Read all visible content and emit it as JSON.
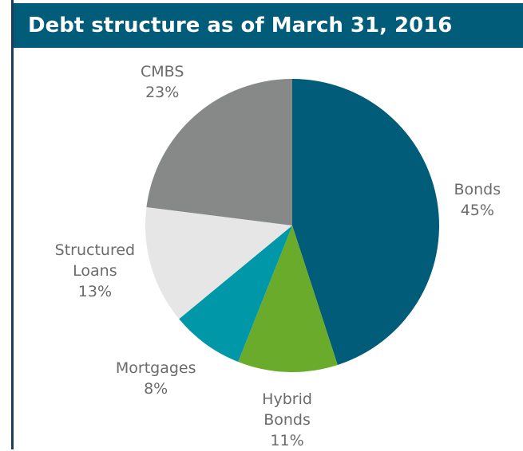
{
  "chart_data": {
    "type": "pie",
    "title": "Debt structure as of March 31, 2016",
    "categories": [
      "Bonds",
      "Hybrid Bonds",
      "Mortgages",
      "Structured Loans",
      "CMBS"
    ],
    "values": [
      45,
      11,
      8,
      13,
      23
    ],
    "value_labels": [
      "45%",
      "11%",
      "8%",
      "13%",
      "23%"
    ],
    "colors": [
      "#005c79",
      "#6aab2b",
      "#0097a9",
      "#e6e6e6",
      "#878888"
    ]
  }
}
